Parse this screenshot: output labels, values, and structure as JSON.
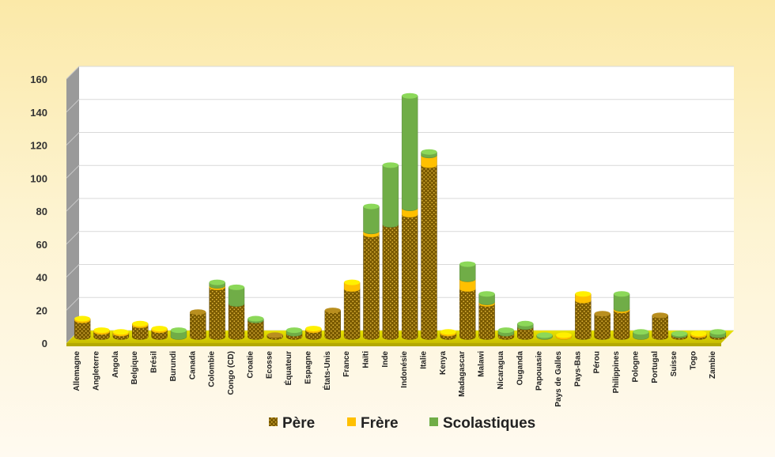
{
  "chart_data": {
    "type": "bar",
    "stacked": true,
    "three_d": true,
    "title": "",
    "xlabel": "",
    "ylabel": "",
    "ylim": [
      0,
      160
    ],
    "yticks": [
      0,
      20,
      40,
      60,
      80,
      100,
      120,
      140,
      160
    ],
    "grid": true,
    "legend_position": "bottom",
    "categories": [
      "Allemagne",
      "Angleterre",
      "Angola",
      "Belgique",
      "Brésil",
      "Burundi",
      "Canada",
      "Colombie",
      "Congo (CD)",
      "Croatie",
      "Ecosse",
      "Équateur",
      "Espagne",
      "États-Unis",
      "France",
      "Haïti",
      "Inde",
      "Indonésie",
      "Italie",
      "Kenya",
      "Madagascar",
      "Malawi",
      "Nicaragua",
      "Ouganda",
      "Papouasie",
      "Pays de Galles",
      "Pays-Bas",
      "Pérou",
      "Philippines",
      "Pologne",
      "Portugal",
      "Suisse",
      "Togo",
      "Zambie"
    ],
    "series": [
      {
        "name": "Père",
        "color": "#7a5a00",
        "values": [
          10,
          3,
          2,
          7,
          4,
          0,
          15,
          30,
          20,
          10,
          1,
          2,
          4,
          16,
          29,
          62,
          68,
          74,
          104,
          2,
          29,
          20,
          2,
          6,
          0,
          0,
          22,
          14,
          16,
          0,
          13,
          1,
          1,
          1
        ]
      },
      {
        "name": "Frère",
        "color": "#ffc000",
        "values": [
          1,
          1,
          1,
          1,
          1,
          0,
          0,
          1,
          0,
          0,
          0,
          0,
          1,
          0,
          4,
          2,
          0,
          4,
          6,
          1,
          6,
          1,
          0,
          0,
          0,
          1,
          4,
          0,
          1,
          0,
          0,
          0,
          1,
          0
        ]
      },
      {
        "name": "Scolastiques",
        "color": "#70ad47",
        "values": [
          0,
          0,
          0,
          0,
          0,
          4,
          0,
          2,
          10,
          1,
          0,
          2,
          0,
          0,
          0,
          15,
          36,
          68,
          2,
          0,
          9,
          5,
          2,
          2,
          1,
          0,
          0,
          0,
          9,
          3,
          0,
          1,
          0,
          2
        ]
      }
    ]
  }
}
